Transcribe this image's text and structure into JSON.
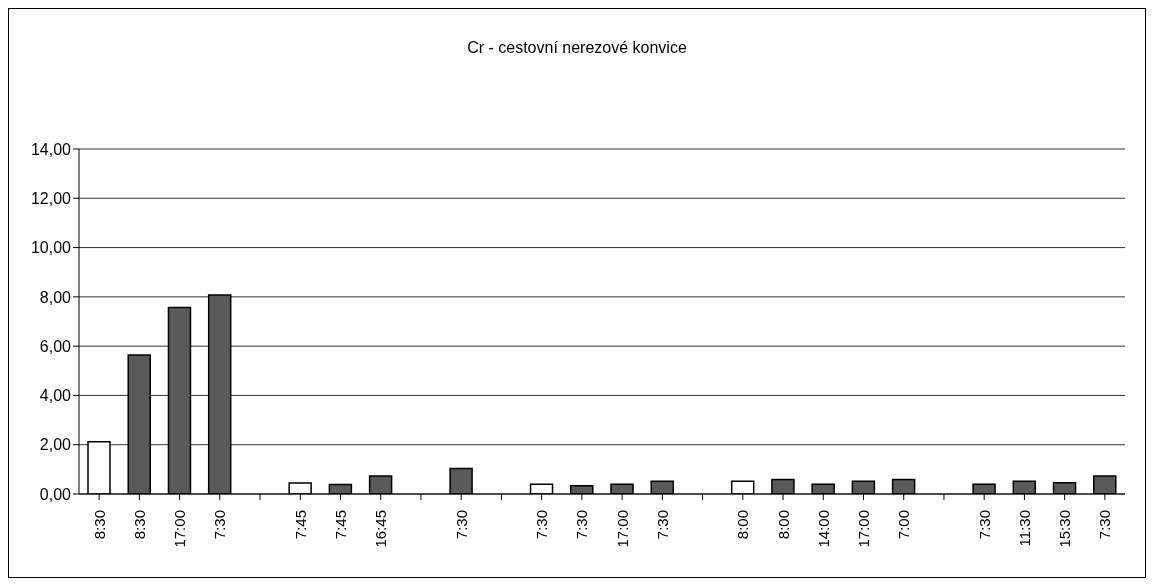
{
  "chart_data": {
    "type": "bar",
    "title": "Cr  - cestovní nerezové konvice",
    "categories": [
      "8:30",
      "8:30",
      "17:00",
      "7:30",
      null,
      "7:45",
      "7:45",
      "16:45",
      null,
      "7:30",
      null,
      "7:30",
      "7:30",
      "17:00",
      "7:30",
      null,
      "8:00",
      "8:00",
      "14:00",
      "17:00",
      "7:00",
      null,
      "7:30",
      "11:30",
      "15:30",
      "7:30"
    ],
    "values": [
      2.12,
      5.64,
      7.57,
      8.08,
      null,
      0.45,
      0.39,
      0.73,
      null,
      1.03,
      null,
      0.4,
      0.33,
      0.4,
      0.52,
      null,
      0.52,
      0.59,
      0.4,
      0.52,
      0.59,
      null,
      0.4,
      0.52,
      0.46,
      0.73
    ],
    "colors": [
      "#ffffff",
      "#5a5a5a",
      "#5a5a5a",
      "#5a5a5a",
      null,
      "#ffffff",
      "#5a5a5a",
      "#5a5a5a",
      null,
      "#5a5a5a",
      null,
      "#ffffff",
      "#5a5a5a",
      "#5a5a5a",
      "#5a5a5a",
      null,
      "#ffffff",
      "#5a5a5a",
      "#5a5a5a",
      "#5a5a5a",
      "#5a5a5a",
      null,
      "#5a5a5a",
      "#5a5a5a",
      "#5a5a5a",
      "#5a5a5a"
    ],
    "ylim": [
      0,
      14
    ],
    "yticks": [
      {
        "value": 0,
        "label": "0,00"
      },
      {
        "value": 2,
        "label": "2,00"
      },
      {
        "value": 4,
        "label": "4,00"
      },
      {
        "value": 6,
        "label": "6,00"
      },
      {
        "value": 8,
        "label": "8,00"
      },
      {
        "value": 10,
        "label": "10,00"
      },
      {
        "value": 12,
        "label": "12,00"
      },
      {
        "value": 14,
        "label": "14,00"
      }
    ],
    "grid": "y",
    "legend": false
  }
}
